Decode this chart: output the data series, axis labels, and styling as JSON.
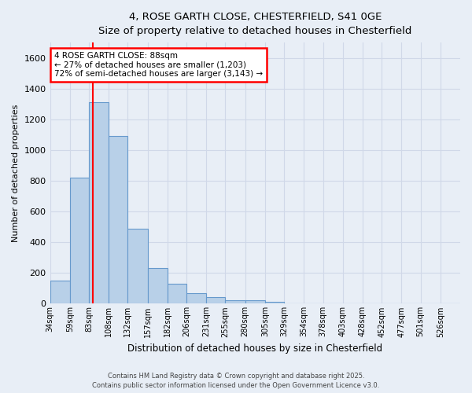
{
  "title_line1": "4, ROSE GARTH CLOSE, CHESTERFIELD, S41 0GE",
  "title_line2": "Size of property relative to detached houses in Chesterfield",
  "xlabel": "Distribution of detached houses by size in Chesterfield",
  "ylabel": "Number of detached properties",
  "bar_values": [
    150,
    820,
    1310,
    1090,
    490,
    230,
    130,
    70,
    45,
    25,
    20,
    10,
    0,
    0,
    0,
    0,
    0,
    0,
    0,
    0,
    0
  ],
  "categories": [
    "34sqm",
    "59sqm",
    "83sqm",
    "108sqm",
    "132sqm",
    "157sqm",
    "182sqm",
    "206sqm",
    "231sqm",
    "255sqm",
    "280sqm",
    "305sqm",
    "329sqm",
    "354sqm",
    "378sqm",
    "403sqm",
    "428sqm",
    "452sqm",
    "477sqm",
    "501sqm",
    "526sqm"
  ],
  "bin_edges": [
    34,
    59,
    83,
    108,
    132,
    157,
    182,
    206,
    231,
    255,
    280,
    305,
    329,
    354,
    378,
    403,
    428,
    452,
    477,
    501,
    526,
    551
  ],
  "bar_color": "#b8d0e8",
  "bar_edge_color": "#6699cc",
  "background_color": "#e8eef6",
  "grid_color": "#d0d8e8",
  "ylim": [
    0,
    1700
  ],
  "yticks": [
    0,
    200,
    400,
    600,
    800,
    1000,
    1200,
    1400,
    1600
  ],
  "annotation_text": "4 ROSE GARTH CLOSE: 88sqm\n← 27% of detached houses are smaller (1,203)\n72% of semi-detached houses are larger (3,143) →",
  "red_line_x": 88,
  "footer_line1": "Contains HM Land Registry data © Crown copyright and database right 2025.",
  "footer_line2": "Contains public sector information licensed under the Open Government Licence v3.0."
}
